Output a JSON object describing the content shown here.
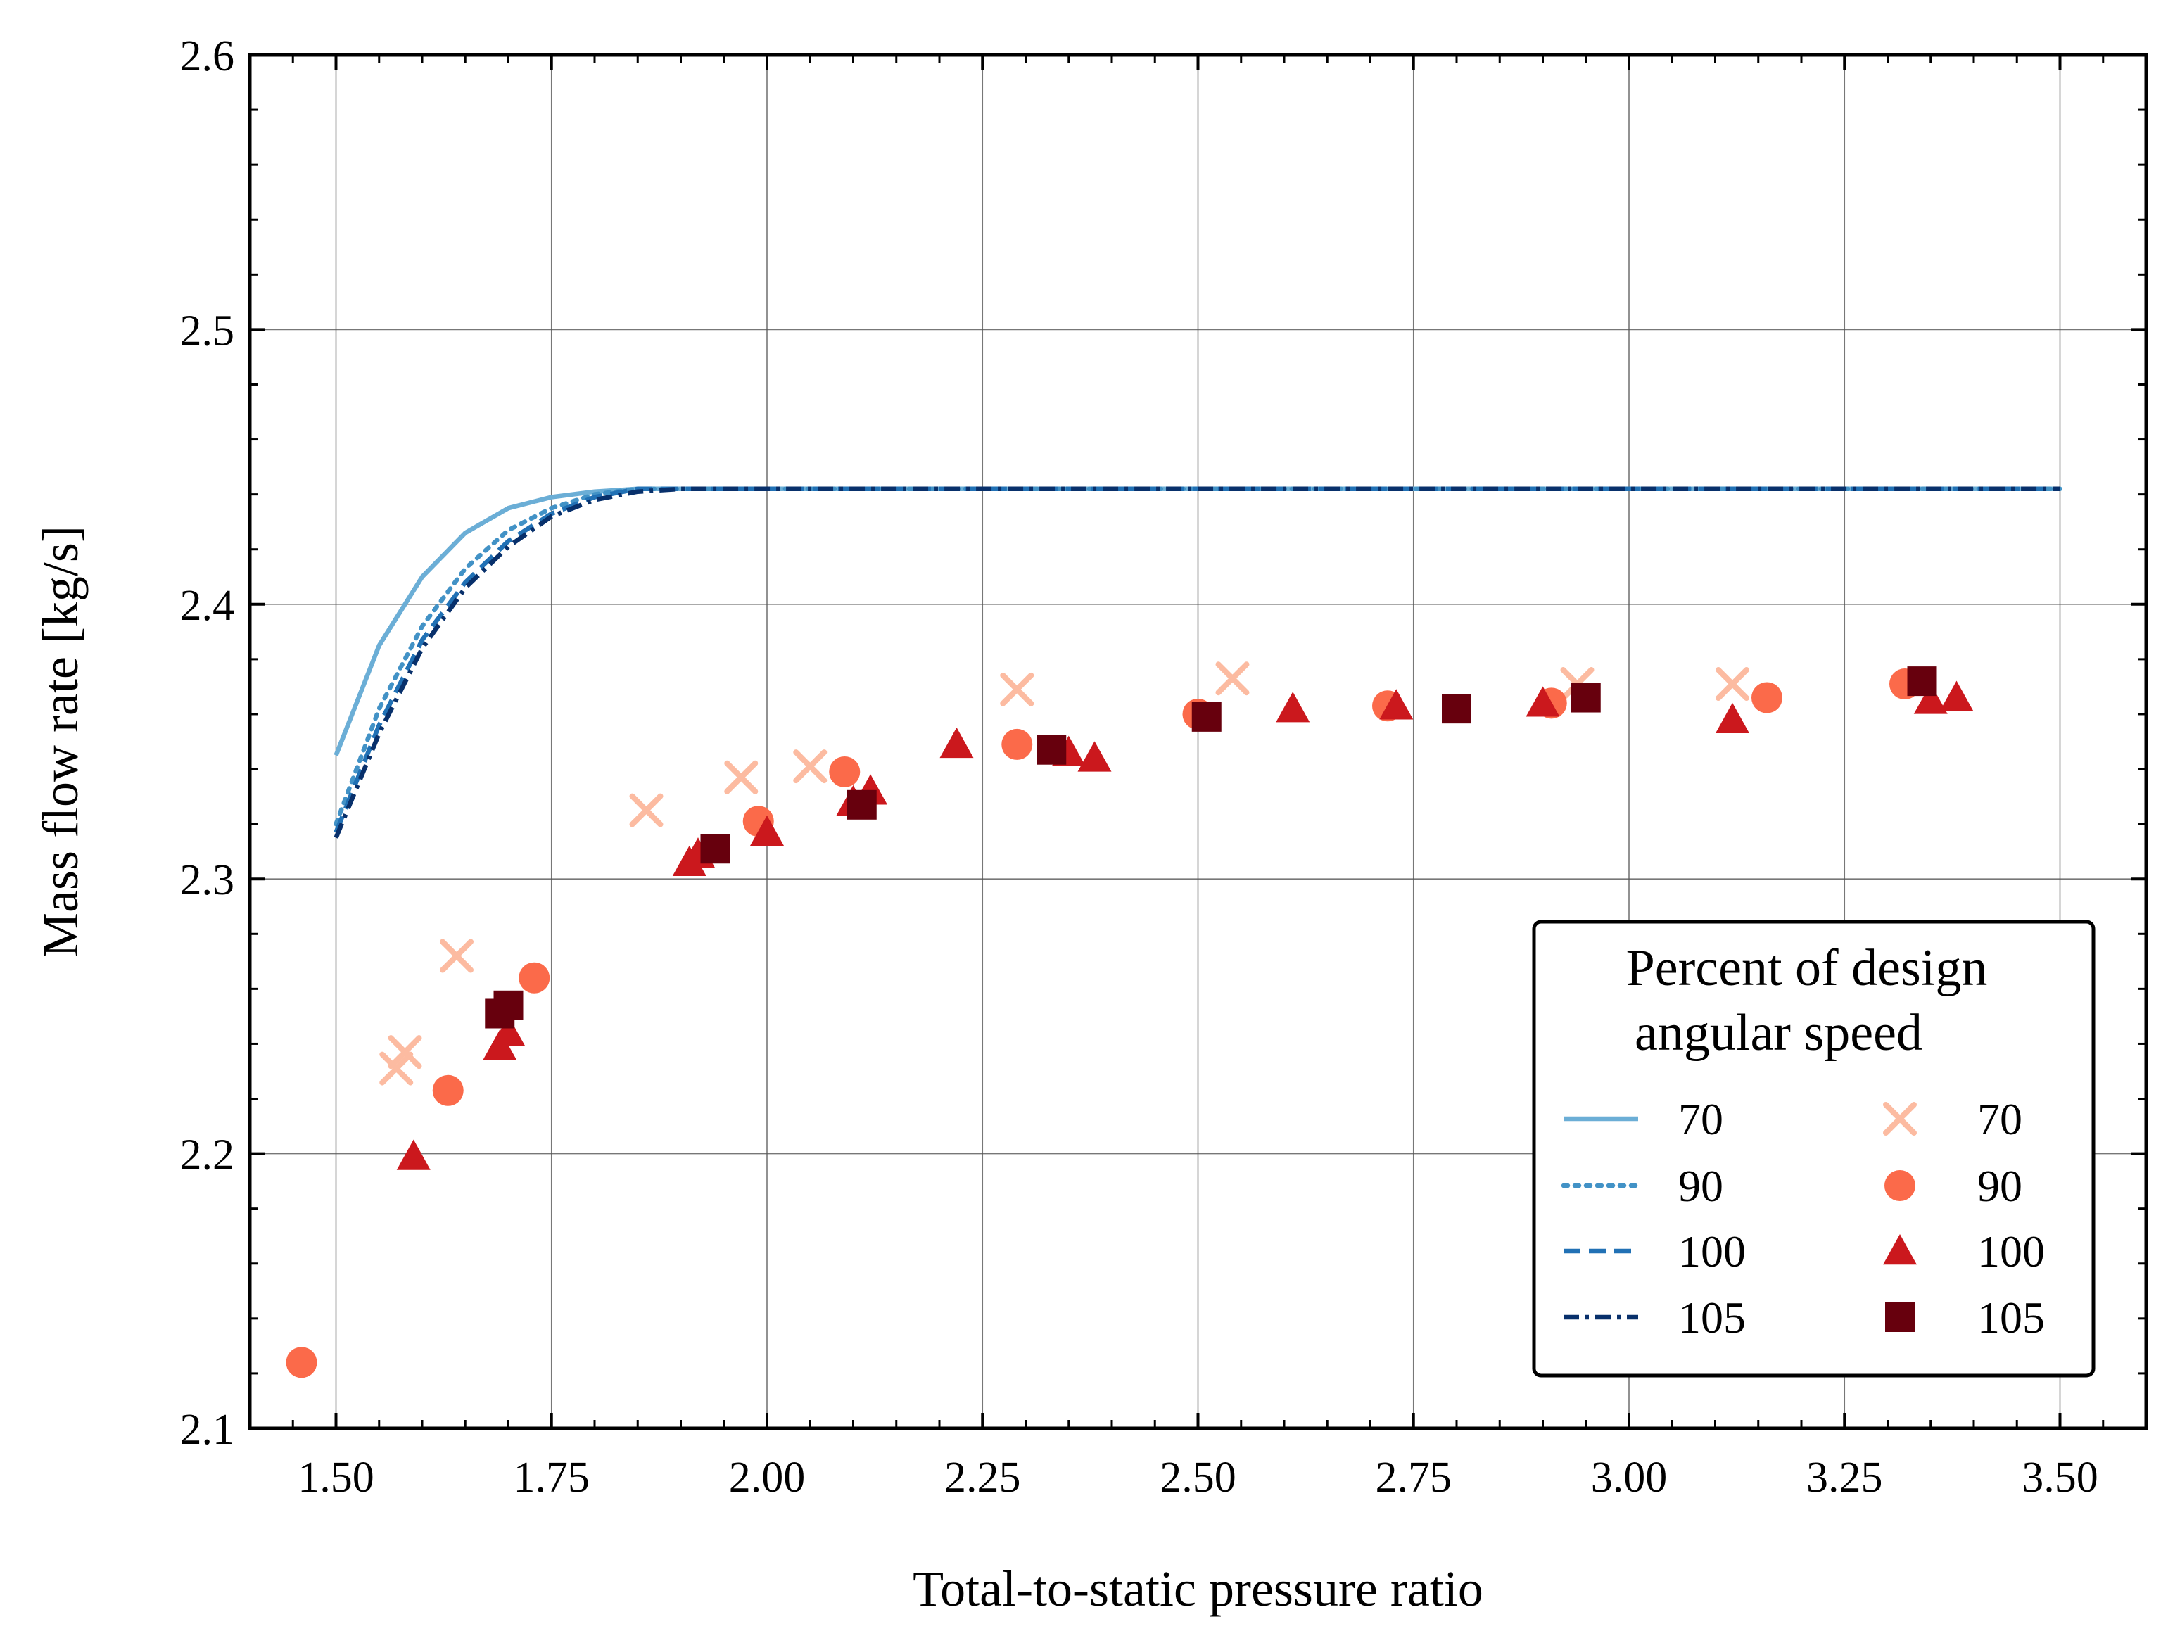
{
  "chart_data": {
    "type": "scatter",
    "title": "",
    "xlabel": "Total-to-static pressure ratio",
    "ylabel": "Mass flow rate [kg/s]",
    "xlim": [
      1.4,
      3.6
    ],
    "ylim": [
      2.1,
      2.6
    ],
    "xticks": [
      1.5,
      1.75,
      2.0,
      2.25,
      2.5,
      2.75,
      3.0,
      3.25,
      3.5
    ],
    "xtick_labels": [
      "1.50",
      "1.75",
      "2.00",
      "2.25",
      "2.50",
      "2.75",
      "3.00",
      "3.25",
      "3.50"
    ],
    "yticks": [
      2.1,
      2.2,
      2.3,
      2.4,
      2.5,
      2.6
    ],
    "ytick_labels": [
      "2.1",
      "2.2",
      "2.3",
      "2.4",
      "2.5",
      "2.6"
    ],
    "grid": true,
    "legend": {
      "title_line1": "Percent of design",
      "title_line2": "angular speed",
      "placement": "lower-right"
    },
    "line_series": [
      {
        "name": "70",
        "color": "#6baed6",
        "dash": "solid",
        "x": [
          1.5,
          1.55,
          1.6,
          1.65,
          1.7,
          1.75,
          1.8,
          1.85,
          1.9,
          2.0,
          2.5,
          3.0,
          3.5
        ],
        "y": [
          2.345,
          2.385,
          2.41,
          2.426,
          2.435,
          2.439,
          2.441,
          2.442,
          2.442,
          2.442,
          2.442,
          2.442,
          2.442
        ]
      },
      {
        "name": "90",
        "color": "#4292c6",
        "dash": "dotted",
        "x": [
          1.5,
          1.55,
          1.6,
          1.65,
          1.7,
          1.75,
          1.8,
          1.85,
          1.9,
          2.0,
          2.5,
          3.0,
          3.5
        ],
        "y": [
          2.32,
          2.362,
          2.392,
          2.413,
          2.427,
          2.435,
          2.44,
          2.442,
          2.442,
          2.442,
          2.442,
          2.442,
          2.442
        ]
      },
      {
        "name": "100",
        "color": "#2171b5",
        "dash": "dashed",
        "x": [
          1.5,
          1.55,
          1.6,
          1.65,
          1.7,
          1.75,
          1.8,
          1.85,
          1.9,
          2.0,
          2.5,
          3.0,
          3.5
        ],
        "y": [
          2.317,
          2.356,
          2.387,
          2.408,
          2.423,
          2.433,
          2.439,
          2.442,
          2.442,
          2.442,
          2.442,
          2.442,
          2.442
        ]
      },
      {
        "name": "105",
        "color": "#08306b",
        "dash": "dashdot",
        "x": [
          1.5,
          1.55,
          1.6,
          1.65,
          1.7,
          1.75,
          1.8,
          1.85,
          1.9,
          2.0,
          2.5,
          3.0,
          3.5
        ],
        "y": [
          2.315,
          2.353,
          2.384,
          2.406,
          2.421,
          2.432,
          2.438,
          2.441,
          2.442,
          2.442,
          2.442,
          2.442,
          2.442
        ]
      }
    ],
    "scatter_series": [
      {
        "name": "70",
        "marker": "x",
        "color": "#fcbba1",
        "x": [
          1.57,
          1.58,
          1.64,
          1.86,
          1.97,
          2.05,
          2.29,
          2.54,
          2.94,
          3.12
        ],
        "y": [
          2.231,
          2.237,
          2.272,
          2.325,
          2.337,
          2.341,
          2.369,
          2.373,
          2.371,
          2.371
        ]
      },
      {
        "name": "90",
        "marker": "circle",
        "color": "#fb6a4a",
        "x": [
          1.46,
          1.63,
          1.73,
          1.99,
          2.09,
          2.29,
          2.5,
          2.72,
          2.91,
          3.16,
          3.32
        ],
        "y": [
          2.124,
          2.223,
          2.264,
          2.321,
          2.339,
          2.349,
          2.36,
          2.363,
          2.364,
          2.366,
          2.371
        ]
      },
      {
        "name": "100",
        "marker": "triangle",
        "color": "#cb181d",
        "x": [
          1.59,
          1.69,
          1.7,
          1.91,
          1.92,
          2.0,
          2.1,
          2.12,
          2.22,
          2.35,
          2.38,
          2.61,
          2.73,
          2.9,
          3.12,
          3.35,
          3.38
        ],
        "y": [
          2.199,
          2.239,
          2.244,
          2.306,
          2.309,
          2.317,
          2.328,
          2.332,
          2.349,
          2.346,
          2.344,
          2.362,
          2.363,
          2.364,
          2.358,
          2.365,
          2.366
        ]
      },
      {
        "name": "105",
        "marker": "square",
        "color": "#67000d",
        "x": [
          1.69,
          1.7,
          1.94,
          2.11,
          2.33,
          2.51,
          2.8,
          2.95,
          3.34
        ],
        "y": [
          2.251,
          2.254,
          2.311,
          2.327,
          2.347,
          2.359,
          2.362,
          2.366,
          2.372
        ]
      }
    ]
  }
}
